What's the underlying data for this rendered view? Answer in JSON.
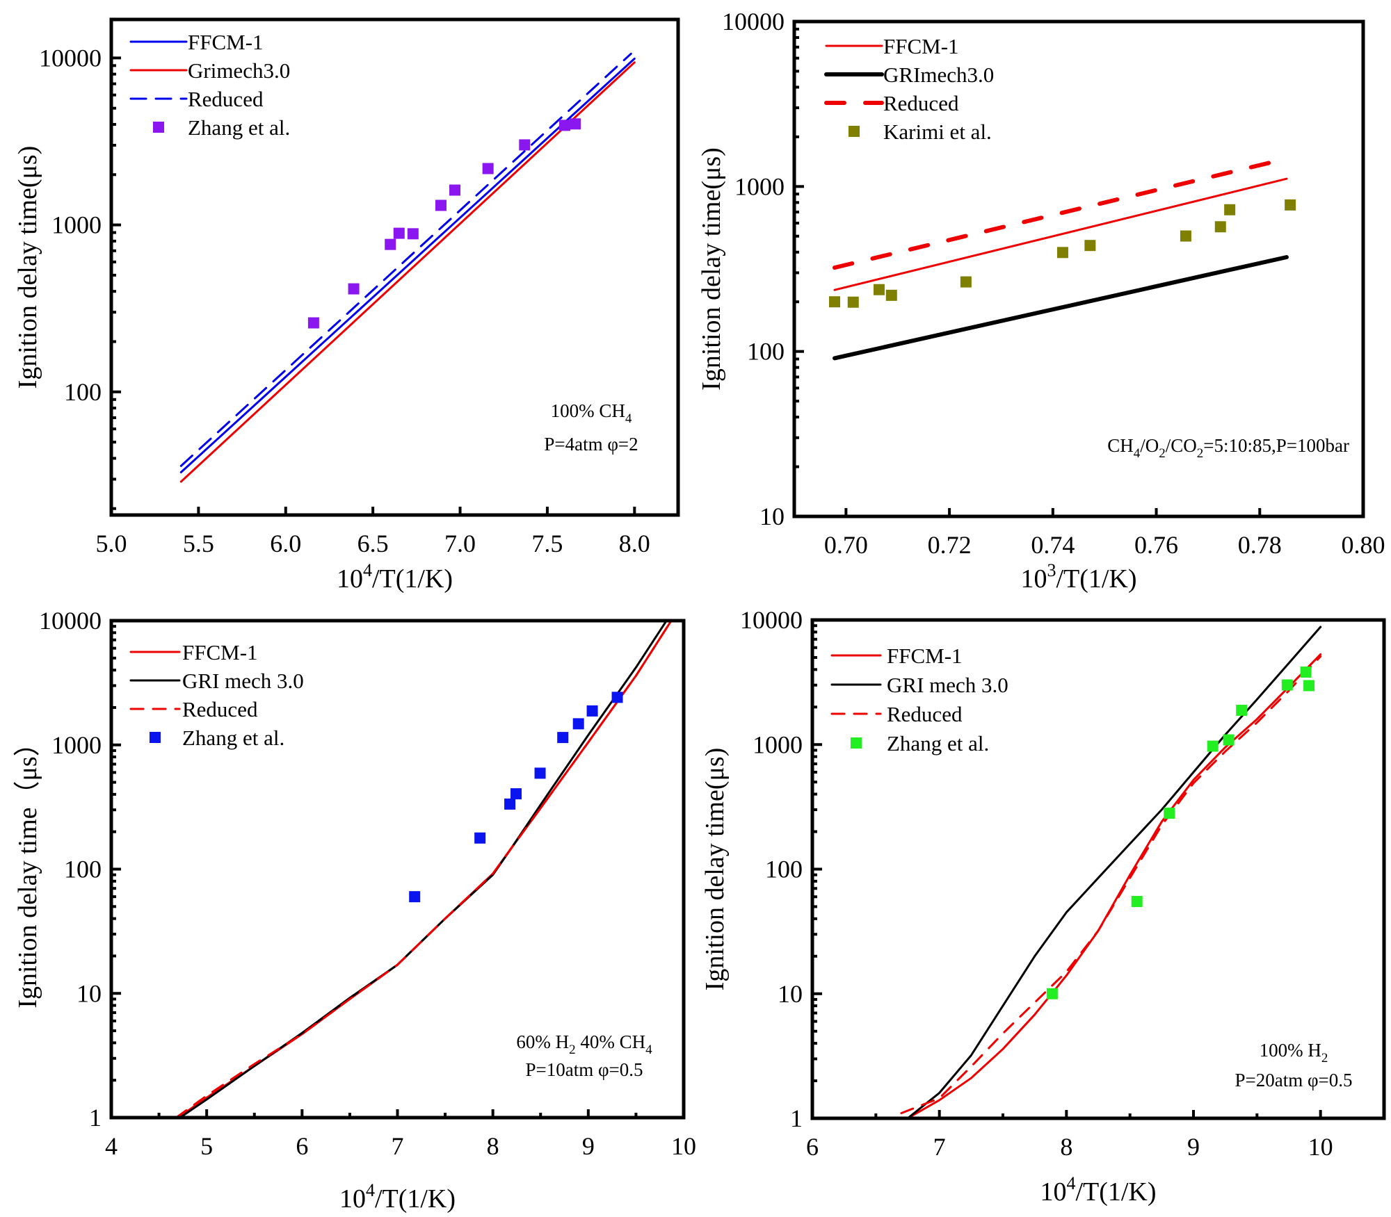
{
  "chart_data": [
    {
      "id": "a",
      "type": "line",
      "xlabel_base": "10",
      "xlabel_sup": "4",
      "xlabel_rest": "/T(1/K)",
      "ylabel": "Ignition delay time(μs)",
      "xlim": [
        5.0,
        8.25
      ],
      "ylim": [
        18.3,
        17000
      ],
      "yscale": "log",
      "xticks": [
        5.0,
        5.5,
        6.0,
        6.5,
        7.0,
        7.5,
        8.0
      ],
      "xtick_labels": [
        "5.0",
        "5.5",
        "6.0",
        "6.5",
        "7.0",
        "7.5",
        "8.0"
      ],
      "yticks": [
        100,
        1000,
        10000
      ],
      "ytick_labels": [
        "100",
        "1000",
        "10000"
      ],
      "legend_position": "top-left",
      "annotation": [
        {
          "parts": [
            [
              "100% CH",
              ""
            ],
            [
              "4",
              "sub"
            ]
          ]
        },
        {
          "parts": [
            [
              "P=4atm φ=2",
              ""
            ]
          ]
        }
      ],
      "series": [
        {
          "name": "FFCM-1",
          "kind": "line",
          "color": "#0000ee",
          "dash": "",
          "width": 3,
          "x": [
            5.4,
            8.0
          ],
          "y": [
            33,
            9900
          ]
        },
        {
          "name": "Grimech3.0",
          "kind": "line",
          "color": "#ee0000",
          "dash": "",
          "width": 3,
          "x": [
            5.4,
            8.0
          ],
          "y": [
            29,
            9400
          ]
        },
        {
          "name": "Reduced",
          "kind": "line",
          "color": "#0000ee",
          "dash": "22,14",
          "width": 3,
          "x": [
            5.4,
            7.98
          ],
          "y": [
            36,
            10600
          ]
        },
        {
          "name": "Zhang et al.",
          "kind": "scatter",
          "color": "#8a17f0",
          "x": [
            6.16,
            6.39,
            6.6,
            6.65,
            6.73,
            6.89,
            6.97,
            7.16,
            7.37,
            7.6,
            7.66
          ],
          "y": [
            259,
            414,
            764,
            891,
            885,
            1309,
            1616,
            2175,
            3015,
            3946,
            4026
          ]
        }
      ]
    },
    {
      "id": "b",
      "type": "line",
      "xlabel_base": "10",
      "xlabel_sup": "3",
      "xlabel_rest": "/T(1/K)",
      "ylabel": "Ignition delay time(μs)",
      "xlim": [
        0.69,
        0.8
      ],
      "ylim": [
        10,
        10000
      ],
      "yscale": "log",
      "xticks": [
        0.7,
        0.72,
        0.74,
        0.76,
        0.78,
        0.8
      ],
      "xtick_labels": [
        "0.70",
        "0.72",
        "0.74",
        "0.76",
        "0.78",
        "0.80"
      ],
      "yticks": [
        10,
        100,
        1000,
        10000
      ],
      "ytick_labels": [
        "10",
        "100",
        "1000",
        "10000"
      ],
      "legend_position": "top-left",
      "annotation": [
        {
          "parts": [
            [
              "CH",
              ""
            ],
            [
              "4",
              "sub"
            ],
            [
              "/O",
              ""
            ],
            [
              "2",
              "sub"
            ],
            [
              "/CO",
              ""
            ],
            [
              "2",
              "sub"
            ],
            [
              "=5:10:85,P=100bar",
              ""
            ]
          ]
        }
      ],
      "series": [
        {
          "name": "FFCM-1",
          "kind": "line",
          "color": "#ee0000",
          "dash": "",
          "width": 3,
          "x": [
            0.6978,
            0.7852
          ],
          "y": [
            236,
            1114
          ]
        },
        {
          "name": "GRImech3.0",
          "kind": "line",
          "color": "#000000",
          "dash": "",
          "width": 6,
          "x": [
            0.6978,
            0.7852
          ],
          "y": [
            91,
            373
          ]
        },
        {
          "name": "Reduced",
          "kind": "line",
          "color": "#ee0000",
          "dash": "26,30",
          "width": 6,
          "x": [
            0.6978,
            0.7852
          ],
          "y": [
            322,
            1475
          ]
        },
        {
          "name": "Karimi et al.",
          "kind": "scatter",
          "color": "#808000",
          "x": [
            0.6978,
            0.7014,
            0.7064,
            0.7088,
            0.7232,
            0.7419,
            0.7472,
            0.7657,
            0.7724,
            0.7742,
            0.7859
          ],
          "y": [
            200,
            199,
            237,
            219,
            264,
            398,
            439,
            501,
            570,
            723,
            773
          ]
        }
      ]
    },
    {
      "id": "c",
      "type": "line",
      "xlabel_base": "10",
      "xlabel_sup": "4",
      "xlabel_rest": "/T(1/K)",
      "ylabel": "Ignition delay time（μs）",
      "xlim": [
        4,
        10
      ],
      "ylim": [
        1,
        10000
      ],
      "yscale": "log",
      "xticks": [
        4,
        5,
        6,
        7,
        8,
        9,
        10
      ],
      "xtick_labels": [
        "4",
        "5",
        "6",
        "7",
        "8",
        "9",
        "10"
      ],
      "yticks": [
        1,
        10,
        100,
        1000,
        10000
      ],
      "ytick_labels": [
        "1",
        "10",
        "100",
        "1000",
        "10000"
      ],
      "legend_position": "top-left",
      "annotation": [
        {
          "parts": [
            [
              "60% H",
              ""
            ],
            [
              "2",
              "sub"
            ],
            [
              " 40% CH",
              ""
            ],
            [
              "4",
              "sub"
            ]
          ]
        },
        {
          "parts": [
            [
              "P=10atm    φ=0.5",
              ""
            ]
          ]
        }
      ],
      "series": [
        {
          "name": "FFCM-1",
          "kind": "line",
          "color": "#ee0000",
          "dash": "",
          "width": 3,
          "x": [
            4.7,
            5.0,
            5.5,
            6.0,
            6.5,
            7.0,
            7.5,
            8.0,
            8.2,
            8.5,
            9.0,
            9.5,
            9.87
          ],
          "y": [
            1,
            1.45,
            2.6,
            4.7,
            9.0,
            17,
            40,
            92,
            150,
            310,
            1050,
            3600,
            10000
          ]
        },
        {
          "name": "GRI mech 3.0",
          "kind": "line",
          "color": "#000000",
          "dash": "",
          "width": 3,
          "x": [
            4.72,
            5.0,
            5.5,
            6.0,
            6.5,
            7.0,
            7.5,
            8.0,
            8.2,
            8.5,
            9.0,
            9.5,
            9.82
          ],
          "y": [
            1,
            1.4,
            2.6,
            4.8,
            9.2,
            17,
            40,
            90,
            150,
            330,
            1200,
            4200,
            10000
          ]
        },
        {
          "name": "Reduced",
          "kind": "line",
          "color": "#ee0000",
          "dash": "18,14",
          "width": 3,
          "x": [
            4.68,
            5.0,
            5.5,
            6.0,
            6.5,
            7.0,
            7.5,
            8.0,
            8.2,
            8.5,
            9.0,
            9.5,
            9.87
          ],
          "y": [
            1,
            1.5,
            2.7,
            4.7,
            9.0,
            17,
            40,
            92,
            150,
            310,
            1050,
            3600,
            10000
          ]
        },
        {
          "name": "Zhang et al.",
          "kind": "scatter",
          "color": "#0a14ee",
          "x": [
            7.18,
            7.865,
            8.178,
            8.243,
            8.495,
            8.733,
            8.897,
            9.042,
            9.304
          ],
          "y": [
            60,
            178,
            334,
            404,
            592,
            1147,
            1479,
            1877,
            2414
          ]
        }
      ]
    },
    {
      "id": "d",
      "type": "line",
      "xlabel_base": "10",
      "xlabel_sup": "4",
      "xlabel_rest": "/T(1/K)",
      "ylabel": "Ignition delay time(μs)",
      "xlim": [
        6,
        10.5
      ],
      "ylim": [
        1,
        10000
      ],
      "yscale": "log",
      "xticks": [
        6,
        7,
        8,
        9,
        10
      ],
      "xtick_labels": [
        "6",
        "7",
        "8",
        "9",
        "10"
      ],
      "yticks": [
        1,
        10,
        100,
        1000,
        10000
      ],
      "ytick_labels": [
        "1",
        "10",
        "100",
        "1000",
        "10000"
      ],
      "legend_position": "top-left",
      "annotation": [
        {
          "parts": [
            [
              "100% H",
              ""
            ],
            [
              "2",
              "sub"
            ]
          ]
        },
        {
          "parts": [
            [
              "P=20atm    φ=0.5",
              ""
            ]
          ]
        }
      ],
      "series": [
        {
          "name": "FFCM-1",
          "kind": "line",
          "color": "#ee0000",
          "dash": "",
          "width": 3,
          "x": [
            6.75,
            7.0,
            7.25,
            7.5,
            7.75,
            8.0,
            8.25,
            8.5,
            8.75,
            9.0,
            9.25,
            9.5,
            9.75,
            10.0
          ],
          "y": [
            1,
            1.4,
            2.1,
            3.6,
            6.8,
            14,
            32,
            90,
            240,
            520,
            950,
            1600,
            2900,
            5300
          ]
        },
        {
          "name": "GRI mech 3.0",
          "kind": "line",
          "color": "#000000",
          "dash": "",
          "width": 3,
          "x": [
            6.75,
            7.0,
            7.25,
            7.5,
            7.75,
            8.0,
            8.25,
            8.5,
            8.75,
            9.0,
            9.25,
            9.5,
            9.75,
            10.0
          ],
          "y": [
            1,
            1.6,
            3.2,
            8,
            20,
            45,
            85,
            160,
            300,
            600,
            1200,
            2300,
            4500,
            8800
          ]
        },
        {
          "name": "Reduced",
          "kind": "line",
          "color": "#ee0000",
          "dash": "18,14",
          "width": 3,
          "x": [
            6.7,
            7.0,
            7.25,
            7.5,
            7.75,
            8.0,
            8.25,
            8.5,
            8.75,
            9.0,
            9.25,
            9.5,
            9.75,
            10.0
          ],
          "y": [
            1.1,
            1.45,
            2.6,
            4.8,
            8.5,
            15,
            32,
            85,
            225,
            490,
            880,
            1500,
            2700,
            5100
          ]
        },
        {
          "name": "Zhang et al.",
          "kind": "scatter",
          "color": "#22ee22",
          "x": [
            7.888,
            8.555,
            8.81,
            9.152,
            9.277,
            9.379,
            9.738,
            9.885,
            9.909
          ],
          "y": [
            10,
            55,
            281,
            971,
            1090,
            1884,
            3008,
            3817,
            2972
          ]
        }
      ]
    }
  ]
}
